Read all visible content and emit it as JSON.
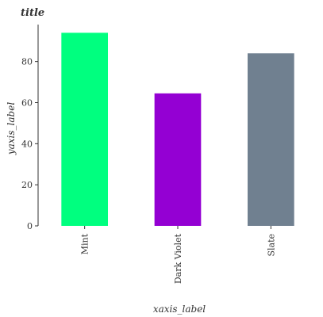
{
  "chart_data": {
    "type": "bar",
    "title": "title",
    "xlabel": "xaxis_label",
    "ylabel": "yaxis_label",
    "categories": [
      "Mint",
      "Dark Violet",
      "Slate"
    ],
    "values": [
      94,
      64.5,
      84
    ],
    "colors": [
      "#00ff7f",
      "#9400d3",
      "#708090"
    ],
    "ylim": [
      0,
      98
    ],
    "yticks": [
      0,
      20,
      40,
      60,
      80
    ],
    "grid": false,
    "legend": "none"
  }
}
